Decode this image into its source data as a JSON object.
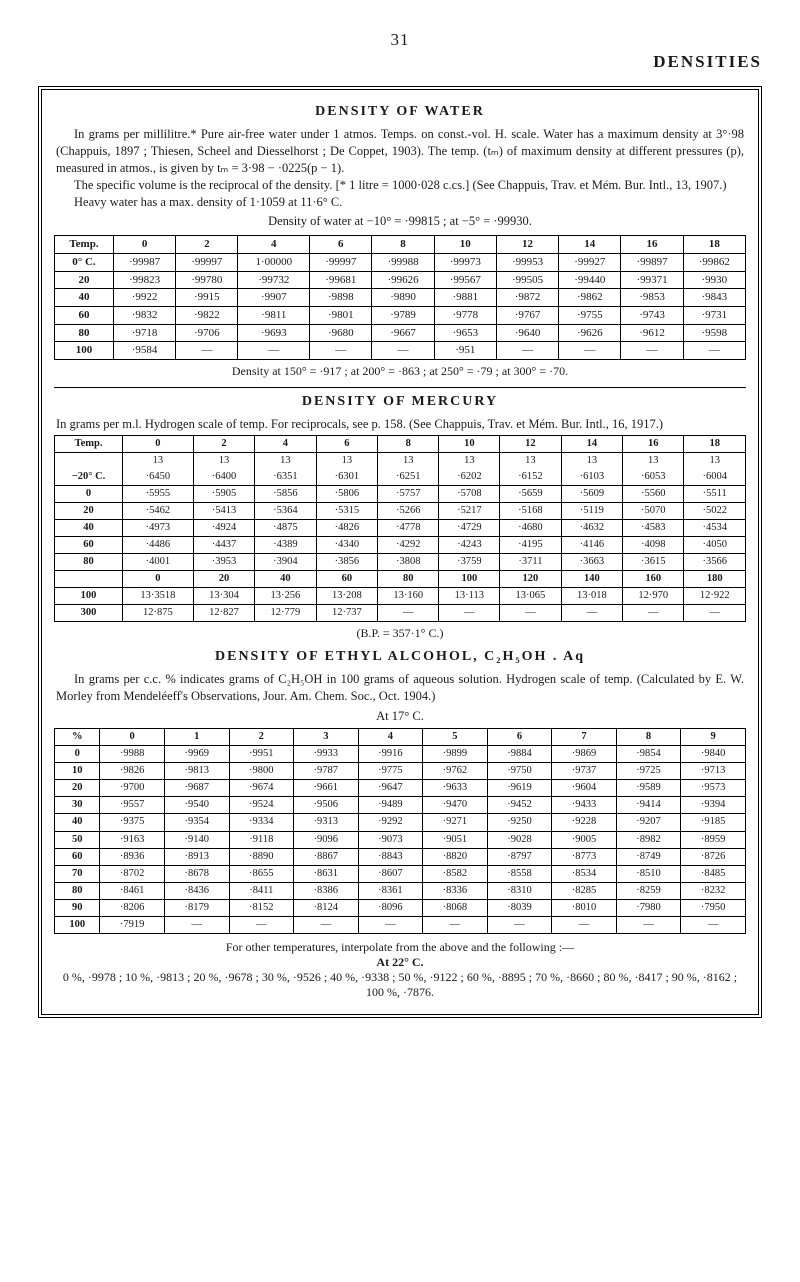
{
  "page_number": "31",
  "running_head": "DENSITIES",
  "water": {
    "title": "DENSITY OF WATER",
    "para1": "In grams per millilitre.* Pure air-free water under 1 atmos. Temps. on const.-vol. H. scale. Water has a maximum density at 3°·98 (Chappuis, 1897 ; Thiesen, Scheel and Diesselhorst ; De Coppet, 1903). The temp. (tₘ) of maximum density at different pressures (p), measured in atmos., is given by tₘ = 3·98 − ·0225(p − 1).",
    "para2": "The specific volume is the reciprocal of the density. [* 1 litre = 1000·028 c.cs.] (See Chappuis, Trav. et Mém. Bur. Intl., 13, 1907.)",
    "para3": "Heavy water has a max. density of 1·1059 at 11·6° C.",
    "dens_line": "Density of water at −10° = ·99815 ; at −5° = ·99930.",
    "col_headers": [
      "Temp.",
      "0",
      "2",
      "4",
      "6",
      "8",
      "10",
      "12",
      "14",
      "16",
      "18"
    ],
    "rows": [
      [
        "0° C.",
        "·99987",
        "·99997",
        "1·00000",
        "·99997",
        "·99988",
        "·99973",
        "·99953",
        "·99927",
        "·99897",
        "·99862"
      ],
      [
        "20",
        "·99823",
        "·99780",
        "·99732",
        "·99681",
        "·99626",
        "·99567",
        "·99505",
        "·99440",
        "·99371",
        "·9930"
      ],
      [
        "40",
        "·9922",
        "·9915",
        "·9907",
        "·9898",
        "·9890",
        "·9881",
        "·9872",
        "·9862",
        "·9853",
        "·9843"
      ],
      [
        "60",
        "·9832",
        "·9822",
        "·9811",
        "·9801",
        "·9789",
        "·9778",
        "·9767",
        "·9755",
        "·9743",
        "·9731"
      ],
      [
        "80",
        "·9718",
        "·9706",
        "·9693",
        "·9680",
        "·9667",
        "·9653",
        "·9640",
        "·9626",
        "·9612",
        "·9598"
      ],
      [
        "100",
        "·9584",
        "—",
        "—",
        "—",
        "—",
        "·951",
        "—",
        "—",
        "—",
        "—"
      ]
    ],
    "note": "Density at 150° = ·917 ; at 200° = ·863 ; at 250° = ·79 ; at 300° = ·70."
  },
  "mercury": {
    "title": "DENSITY OF MERCURY",
    "intro": "In grams per m.l.  Hydrogen scale of temp.  For reciprocals, see p. 158.  (See Chappuis, Trav. et Mém. Bur. Intl., 16, 1917.)",
    "col_headers": [
      "Temp.",
      "0",
      "2",
      "4",
      "6",
      "8",
      "10",
      "12",
      "14",
      "16",
      "18"
    ],
    "prefix_row": [
      "",
      "13",
      "13",
      "13",
      "13",
      "13",
      "13",
      "13",
      "13",
      "13",
      "13"
    ],
    "rows": [
      [
        "−20° C.",
        "·6450",
        "·6400",
        "·6351",
        "·6301",
        "·6251",
        "·6202",
        "·6152",
        "·6103",
        "·6053",
        "·6004"
      ],
      [
        "0",
        "·5955",
        "·5905",
        "·5856",
        "·5806",
        "·5757",
        "·5708",
        "·5659",
        "·5609",
        "·5560",
        "·5511"
      ],
      [
        "20",
        "·5462",
        "·5413",
        "·5364",
        "·5315",
        "·5266",
        "·5217",
        "·5168",
        "·5119",
        "·5070",
        "·5022"
      ],
      [
        "40",
        "·4973",
        "·4924",
        "·4875",
        "·4826",
        "·4778",
        "·4729",
        "·4680",
        "·4632",
        "·4583",
        "·4534"
      ],
      [
        "60",
        "·4486",
        "·4437",
        "·4389",
        "·4340",
        "·4292",
        "·4243",
        "·4195",
        "·4146",
        "·4098",
        "·4050"
      ],
      [
        "80",
        "·4001",
        "·3953",
        "·3904",
        "·3856",
        "·3808",
        "·3759",
        "·3711",
        "·3663",
        "·3615",
        "·3566"
      ]
    ],
    "mid_row": [
      "",
      "0",
      "20",
      "40",
      "60",
      "80",
      "100",
      "120",
      "140",
      "160",
      "180"
    ],
    "rows2": [
      [
        "100",
        "13·3518",
        "13·304",
        "13·256",
        "13·208",
        "13·160",
        "13·113",
        "13·065",
        "13·018",
        "12·970",
        "12·922"
      ],
      [
        "300",
        "12·875",
        "12·827",
        "12·779",
        "12·737",
        "—",
        "—",
        "—",
        "—",
        "—",
        "—"
      ]
    ],
    "bp": "(B.P. = 357·1° C.)"
  },
  "alcohol": {
    "title": "DENSITY OF ETHYL ALCOHOL, C₂H₅OH . Aq",
    "intro": "In grams per c.c.  % indicates grams of C₂H₅OH in 100 grams of aqueous solution.  Hydrogen scale of temp.  (Calculated by E. W. Morley from Mendeléeff's Observations, Jour. Am. Chem. Soc., Oct. 1904.)",
    "at": "At 17° C.",
    "col_headers": [
      "%",
      "0",
      "1",
      "2",
      "3",
      "4",
      "5",
      "6",
      "7",
      "8",
      "9"
    ],
    "rows": [
      [
        "0",
        "·9988",
        "·9969",
        "·9951",
        "·9933",
        "·9916",
        "·9899",
        "·9884",
        "·9869",
        "·9854",
        "·9840"
      ],
      [
        "10",
        "·9826",
        "·9813",
        "·9800",
        "·9787",
        "·9775",
        "·9762",
        "·9750",
        "·9737",
        "·9725",
        "·9713"
      ],
      [
        "20",
        "·9700",
        "·9687",
        "·9674",
        "·9661",
        "·9647",
        "·9633",
        "·9619",
        "·9604",
        "·9589",
        "·9573"
      ],
      [
        "30",
        "·9557",
        "·9540",
        "·9524",
        "·9506",
        "·9489",
        "·9470",
        "·9452",
        "·9433",
        "·9414",
        "·9394"
      ],
      [
        "40",
        "·9375",
        "·9354",
        "·9334",
        "·9313",
        "·9292",
        "·9271",
        "·9250",
        "·9228",
        "·9207",
        "·9185"
      ],
      [
        "50",
        "·9163",
        "·9140",
        "·9118",
        "·9096",
        "·9073",
        "·9051",
        "·9028",
        "·9005",
        "·8982",
        "·8959"
      ],
      [
        "60",
        "·8936",
        "·8913",
        "·8890",
        "·8867",
        "·8843",
        "·8820",
        "·8797",
        "·8773",
        "·8749",
        "·8726"
      ],
      [
        "70",
        "·8702",
        "·8678",
        "·8655",
        "·8631",
        "·8607",
        "·8582",
        "·8558",
        "·8534",
        "·8510",
        "·8485"
      ],
      [
        "80",
        "·8461",
        "·8436",
        "·8411",
        "·8386",
        "·8361",
        "·8336",
        "·8310",
        "·8285",
        "·8259",
        "·8232"
      ],
      [
        "90",
        "·8206",
        "·8179",
        "·8152",
        "·8124",
        "·8096",
        "·8068",
        "·8039",
        "·8010",
        "·7980",
        "·7950"
      ],
      [
        "100",
        "·7919",
        "—",
        "—",
        "—",
        "—",
        "—",
        "—",
        "—",
        "—",
        "—"
      ]
    ],
    "footer1": "For other temperatures, interpolate from the above and the following :—",
    "footer_title": "At 22° C.",
    "footer2": "0 %, ·9978 ; 10 %, ·9813 ; 20 %, ·9678 ; 30 %, ·9526 ; 40 %, ·9338 ; 50 %, ·9122 ; 60 %, ·8895 ; 70 %, ·8660 ; 80 %, ·8417 ; 90 %, ·8162 ; 100 %, ·7876."
  }
}
